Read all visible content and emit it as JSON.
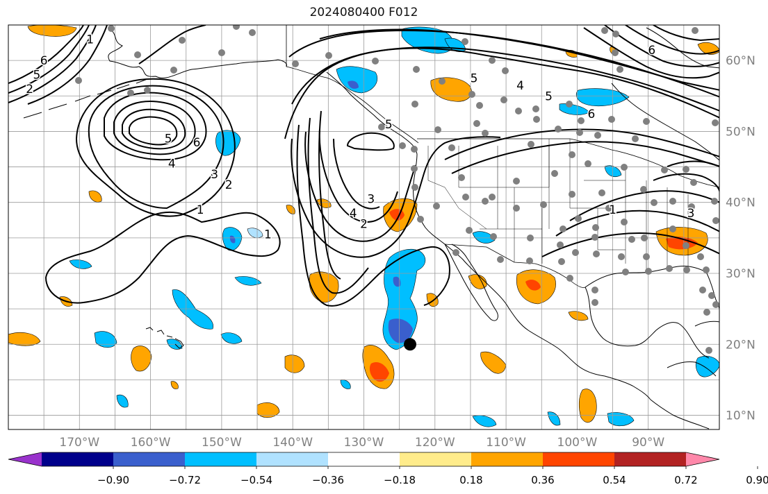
{
  "title": "2024080400 F012",
  "colors": {
    "ocean": "#ffffff",
    "land_outline": "#000000",
    "grid": "#9a9a9a",
    "axis_label": "#808080",
    "contour": "#000000",
    "station": "#808080",
    "marker": "#000000"
  },
  "map": {
    "lon_range": [
      -180,
      -80
    ],
    "lat_range": [
      8,
      65
    ],
    "lon_ticks": [
      {
        "lon": -170,
        "label": "170°W"
      },
      {
        "lon": -160,
        "label": "160°W"
      },
      {
        "lon": -150,
        "label": "150°W"
      },
      {
        "lon": -140,
        "label": "140°W"
      },
      {
        "lon": -130,
        "label": "130°W"
      },
      {
        "lon": -120,
        "label": "120°W"
      },
      {
        "lon": -110,
        "label": "110°W"
      },
      {
        "lon": -100,
        "label": "100°W"
      },
      {
        "lon": -90,
        "label": "90°W"
      }
    ],
    "lat_ticks": [
      {
        "lat": 60,
        "label": "60°N"
      },
      {
        "lat": 50,
        "label": "50°N"
      },
      {
        "lat": 40,
        "label": "40°N"
      },
      {
        "lat": 30,
        "label": "30°N"
      },
      {
        "lat": 20,
        "label": "20°N"
      },
      {
        "lat": 10,
        "label": "10°N"
      }
    ]
  },
  "colorbar": {
    "ticks": [
      "−0.90",
      "−0.72",
      "−0.54",
      "−0.36",
      "−0.18",
      "0.18",
      "0.36",
      "0.54",
      "0.72",
      "0.90"
    ],
    "colors": [
      "#9932cc",
      "#00008b",
      "#3a5fcd",
      "#00bfff",
      "#b0e2ff",
      "#ffffff",
      "#ffec8b",
      "#ffa500",
      "#ff4500",
      "#b22222",
      "#ff88aa"
    ]
  },
  "contour_labels": [
    {
      "text": "1",
      "lon": -168.5,
      "lat": 63
    },
    {
      "text": "5",
      "lon": -176,
      "lat": 58
    },
    {
      "text": "6",
      "lon": -175,
      "lat": 60
    },
    {
      "text": "2",
      "lon": -177,
      "lat": 56
    },
    {
      "text": "6",
      "lon": -153.5,
      "lat": 48.5
    },
    {
      "text": "5",
      "lon": -157.5,
      "lat": 49
    },
    {
      "text": "4",
      "lon": -157,
      "lat": 45.5
    },
    {
      "text": "3",
      "lon": -151,
      "lat": 44
    },
    {
      "text": "2",
      "lon": -149,
      "lat": 42.5
    },
    {
      "text": "1",
      "lon": -153,
      "lat": 39
    },
    {
      "text": "1",
      "lon": -143.5,
      "lat": 35.5
    },
    {
      "text": "5",
      "lon": -126.5,
      "lat": 51
    },
    {
      "text": "4",
      "lon": -131.5,
      "lat": 38.5
    },
    {
      "text": "3",
      "lon": -129,
      "lat": 40.5
    },
    {
      "text": "2",
      "lon": -130,
      "lat": 37
    },
    {
      "text": "5",
      "lon": -114.5,
      "lat": 57.5
    },
    {
      "text": "4",
      "lon": -108,
      "lat": 56.5
    },
    {
      "text": "5",
      "lon": -104,
      "lat": 55
    },
    {
      "text": "6",
      "lon": -98,
      "lat": 52.5
    },
    {
      "text": "1",
      "lon": -95,
      "lat": 39
    },
    {
      "text": "3",
      "lon": -84,
      "lat": 38.5
    },
    {
      "text": "6",
      "lon": -89.5,
      "lat": 61.5
    }
  ],
  "marker": {
    "lon": -123.5,
    "lat": 20
  }
}
